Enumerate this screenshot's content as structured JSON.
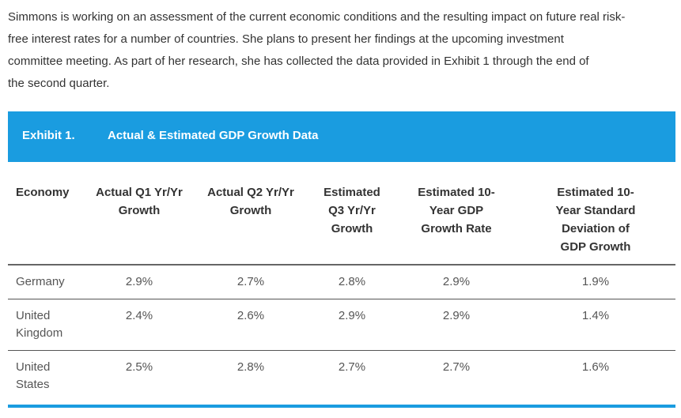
{
  "intro": {
    "lines": [
      "Simmons is working on an assessment of the current economic conditions and the resulting impact on future real risk-",
      "free interest rates for a number of countries. She plans to present her findings at the upcoming investment",
      "committee meeting. As part of her research, she has collected the data provided in Exhibit 1 through the end of",
      "the second quarter."
    ]
  },
  "exhibit": {
    "number": "Exhibit 1.",
    "title": "Actual & Estimated GDP Growth Data"
  },
  "table": {
    "headers": [
      "Economy",
      "Actual Q1 Yr/Yr Growth",
      "Actual Q2 Yr/Yr Growth",
      "Estimated Q3 Yr/Yr Growth",
      "Estimated 10-Year GDP Growth Rate",
      "Estimated 10-Year Standard Deviation of GDP Growth"
    ],
    "rows": [
      [
        "Germany",
        "2.9%",
        "2.7%",
        "2.8%",
        "2.9%",
        "1.9%"
      ],
      [
        "United Kingdom",
        "2.4%",
        "2.6%",
        "2.9%",
        "2.9%",
        "1.4%"
      ],
      [
        "United States",
        "2.5%",
        "2.8%",
        "2.7%",
        "2.7%",
        "1.6%"
      ]
    ]
  }
}
